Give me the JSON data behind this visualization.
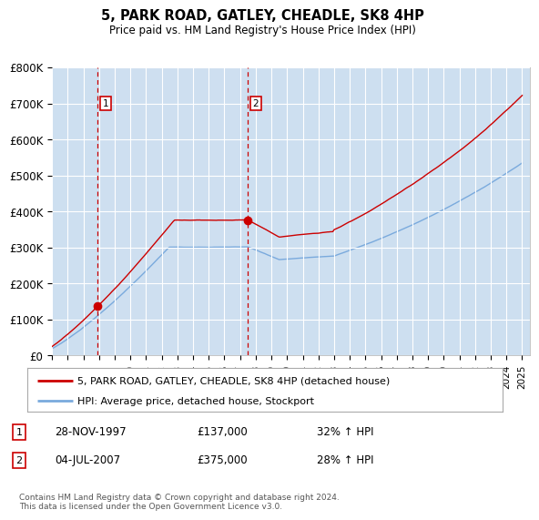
{
  "title": "5, PARK ROAD, GATLEY, CHEADLE, SK8 4HP",
  "subtitle": "Price paid vs. HM Land Registry's House Price Index (HPI)",
  "background_color": "#ccdff0",
  "plot_bg_color": "#cddff0",
  "shaded_region_color": "#d8e8f4",
  "ylabel_color": "#222222",
  "ylim": [
    0,
    800000
  ],
  "yticks": [
    0,
    100000,
    200000,
    300000,
    400000,
    500000,
    600000,
    700000,
    800000
  ],
  "ytick_labels": [
    "£0",
    "£100K",
    "£200K",
    "£300K",
    "£400K",
    "£500K",
    "£600K",
    "£700K",
    "£800K"
  ],
  "sale1_date": 1997.91,
  "sale1_price": 137000,
  "sale2_date": 2007.5,
  "sale2_price": 375000,
  "legend_line1": "5, PARK ROAD, GATLEY, CHEADLE, SK8 4HP (detached house)",
  "legend_line2": "HPI: Average price, detached house, Stockport",
  "annotation1_date": "28-NOV-1997",
  "annotation1_price": "£137,000",
  "annotation1_hpi": "32% ↑ HPI",
  "annotation2_date": "04-JUL-2007",
  "annotation2_price": "£375,000",
  "annotation2_hpi": "28% ↑ HPI",
  "footer": "Contains HM Land Registry data © Crown copyright and database right 2024.\nThis data is licensed under the Open Government Licence v3.0.",
  "red_line_color": "#cc0000",
  "blue_line_color": "#7aaadd",
  "marker_color": "#cc0000",
  "vline_color": "#cc0000",
  "grid_color": "#ffffff",
  "box_color": "#cc0000"
}
